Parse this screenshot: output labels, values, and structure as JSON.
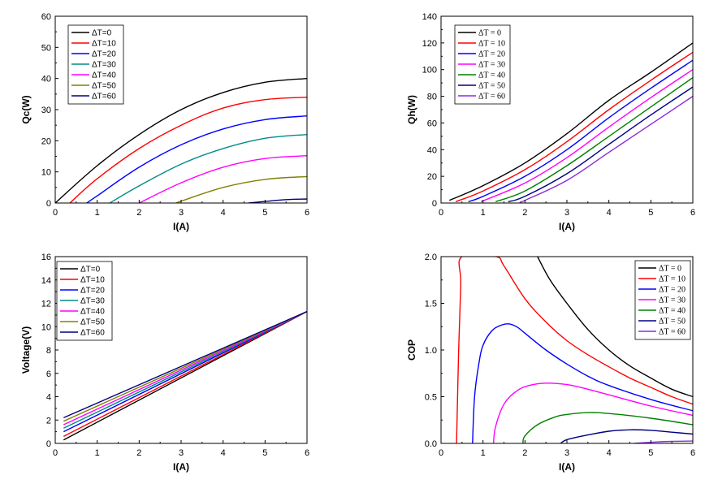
{
  "chart_data": [
    {
      "id": "qc",
      "type": "line",
      "xlabel": "I(A)",
      "ylabel": "Qc(W)",
      "xlim": [
        0,
        6
      ],
      "ylim": [
        0,
        60
      ],
      "xticks": [
        0,
        1,
        2,
        3,
        4,
        5,
        6
      ],
      "yticks": [
        0,
        10,
        20,
        30,
        40,
        50,
        60
      ],
      "legend_position": "top-left",
      "legend_font": "sans",
      "series": [
        {
          "name": "ΔT=0",
          "color": "#000000",
          "x": [
            0,
            1,
            2,
            3,
            4,
            5,
            6
          ],
          "y": [
            0,
            12.0,
            22.0,
            30.0,
            35.5,
            38.8,
            40.0
          ]
        },
        {
          "name": "ΔT=10",
          "color": "#ff0000",
          "x": [
            0.35,
            1,
            2,
            3,
            4,
            5,
            6
          ],
          "y": [
            0,
            7.8,
            17.5,
            25.0,
            30.5,
            33.2,
            34.0
          ]
        },
        {
          "name": "ΔT=20",
          "color": "#0000ff",
          "x": [
            0.75,
            1,
            2,
            3,
            4,
            5,
            6
          ],
          "y": [
            0,
            2.3,
            11.5,
            18.7,
            23.8,
            26.8,
            28.0
          ]
        },
        {
          "name": "ΔT=30",
          "color": "#008b8b",
          "x": [
            1.3,
            2,
            3,
            4,
            5,
            6
          ],
          "y": [
            0,
            5.5,
            12.5,
            17.5,
            20.8,
            22.0
          ]
        },
        {
          "name": "ΔT=40",
          "color": "#ff00ff",
          "x": [
            2.0,
            3,
            4,
            5,
            6
          ],
          "y": [
            0,
            6.5,
            11.5,
            14.3,
            15.2
          ]
        },
        {
          "name": "ΔT=50",
          "color": "#808000",
          "x": [
            2.9,
            3,
            4,
            5,
            6
          ],
          "y": [
            0,
            0.6,
            5.0,
            7.6,
            8.5
          ]
        },
        {
          "name": "ΔT=60",
          "color": "#000080",
          "x": [
            4.6,
            5,
            5.5,
            6
          ],
          "y": [
            0,
            0.5,
            1.1,
            1.3
          ]
        }
      ]
    },
    {
      "id": "qh",
      "type": "line",
      "xlabel": "I(A)",
      "ylabel": "Qh(W)",
      "xlim": [
        0,
        6
      ],
      "ylim": [
        0,
        140
      ],
      "xticks": [
        0,
        1,
        2,
        3,
        4,
        5,
        6
      ],
      "yticks": [
        0,
        20,
        40,
        60,
        80,
        100,
        120,
        140
      ],
      "legend_position": "top-left",
      "legend_font": "serif",
      "series": [
        {
          "name": "ΔT = 0",
          "color": "#000000",
          "x": [
            0.2,
            1,
            2,
            3,
            4,
            5,
            6
          ],
          "y": [
            2,
            13,
            30,
            52,
            77,
            98,
            120
          ]
        },
        {
          "name": "ΔT = 10",
          "color": "#ff0000",
          "x": [
            0.35,
            1,
            2,
            3,
            4,
            5,
            6
          ],
          "y": [
            1,
            9,
            25,
            46,
            70,
            92,
            113
          ]
        },
        {
          "name": "ΔT = 20",
          "color": "#0000ff",
          "x": [
            0.65,
            1,
            2,
            3,
            4,
            5,
            6
          ],
          "y": [
            1,
            5,
            20,
            40,
            64,
            86,
            107
          ]
        },
        {
          "name": "ΔT = 30",
          "color": "#ff00ff",
          "x": [
            0.95,
            2,
            3,
            4,
            5,
            6
          ],
          "y": [
            1,
            15,
            34,
            57,
            79,
            100
          ]
        },
        {
          "name": "ΔT = 40",
          "color": "#008000",
          "x": [
            1.3,
            2,
            3,
            4,
            5,
            6
          ],
          "y": [
            1,
            9,
            28,
            50,
            72,
            94
          ]
        },
        {
          "name": "ΔT = 50",
          "color": "#000080",
          "x": [
            1.6,
            2,
            3,
            4,
            5,
            6
          ],
          "y": [
            1,
            5,
            22,
            44,
            66,
            87
          ]
        },
        {
          "name": "ΔT = 60",
          "color": "#8a2be2",
          "x": [
            1.9,
            2,
            3,
            4,
            5,
            6
          ],
          "y": [
            1,
            2,
            17,
            38,
            59,
            80
          ]
        }
      ]
    },
    {
      "id": "voltage",
      "type": "line",
      "xlabel": "I(A)",
      "ylabel": "Voltage(V)",
      "xlim": [
        0,
        6
      ],
      "ylim": [
        0,
        16
      ],
      "xticks": [
        0,
        1,
        2,
        3,
        4,
        5,
        6
      ],
      "yticks": [
        0,
        2,
        4,
        6,
        8,
        10,
        12,
        14,
        16
      ],
      "legend_position": "top-left",
      "legend_font": "sans",
      "series": [
        {
          "name": "ΔT=0",
          "color": "#000000",
          "x": [
            0.2,
            6
          ],
          "y": [
            0.3,
            11.3
          ]
        },
        {
          "name": "ΔT=10",
          "color": "#ff0000",
          "x": [
            0.2,
            6
          ],
          "y": [
            0.6,
            11.3
          ]
        },
        {
          "name": "ΔT=20",
          "color": "#0000ff",
          "x": [
            0.2,
            6
          ],
          "y": [
            1.0,
            11.3
          ]
        },
        {
          "name": "ΔT=30",
          "color": "#008b8b",
          "x": [
            0.2,
            6
          ],
          "y": [
            1.3,
            11.3
          ]
        },
        {
          "name": "ΔT=40",
          "color": "#ff00ff",
          "x": [
            0.2,
            6
          ],
          "y": [
            1.6,
            11.3
          ]
        },
        {
          "name": "ΔT=50",
          "color": "#808000",
          "x": [
            0.2,
            6
          ],
          "y": [
            1.9,
            11.3
          ]
        },
        {
          "name": "ΔT=60",
          "color": "#000080",
          "x": [
            0.2,
            6
          ],
          "y": [
            2.2,
            11.3
          ]
        }
      ]
    },
    {
      "id": "cop",
      "type": "line",
      "xlabel": "I(A)",
      "ylabel": "COP",
      "xlim": [
        0,
        6
      ],
      "ylim": [
        0,
        2.0
      ],
      "xticks": [
        0,
        1,
        2,
        3,
        4,
        5,
        6
      ],
      "yticks": [
        0.0,
        0.5,
        1.0,
        1.5,
        2.0
      ],
      "tick_format": "fixed1",
      "legend_position": "top-right",
      "legend_font": "serif",
      "series": [
        {
          "name": "ΔT =  0",
          "color": "#000000",
          "x": [
            2.3,
            2.6,
            3,
            3.5,
            4,
            4.5,
            5,
            5.5,
            6
          ],
          "y": [
            2.0,
            1.75,
            1.5,
            1.22,
            1.0,
            0.83,
            0.7,
            0.58,
            0.5
          ]
        },
        {
          "name": "ΔT = 10",
          "color": "#ff0000",
          "x": [
            0.37,
            0.42,
            0.47,
            0.5,
            1.3,
            1.5,
            2,
            2.5,
            3,
            3.5,
            4,
            4.5,
            5,
            5.5,
            6
          ],
          "y": [
            0,
            1.0,
            1.7,
            2.0,
            2.0,
            1.9,
            1.55,
            1.3,
            1.1,
            0.95,
            0.82,
            0.7,
            0.6,
            0.5,
            0.42
          ]
        },
        {
          "name": "ΔT = 20",
          "color": "#0000ff",
          "x": [
            0.75,
            0.8,
            0.9,
            1,
            1.2,
            1.4,
            1.6,
            1.8,
            2,
            2.5,
            3,
            3.5,
            4,
            5,
            6
          ],
          "y": [
            0,
            0.5,
            0.85,
            1.05,
            1.2,
            1.26,
            1.28,
            1.25,
            1.18,
            1.0,
            0.85,
            0.72,
            0.62,
            0.47,
            0.35
          ]
        },
        {
          "name": "ΔT = 30",
          "color": "#ff00ff",
          "x": [
            1.25,
            1.3,
            1.5,
            1.8,
            2.1,
            2.5,
            3,
            3.5,
            4,
            5,
            6
          ],
          "y": [
            0,
            0.18,
            0.42,
            0.56,
            0.62,
            0.645,
            0.63,
            0.58,
            0.52,
            0.4,
            0.3
          ]
        },
        {
          "name": "ΔT = 40",
          "color": "#008000",
          "x": [
            1.95,
            2,
            2.3,
            2.7,
            3,
            3.5,
            4,
            5,
            6
          ],
          "y": [
            0,
            0.08,
            0.2,
            0.28,
            0.31,
            0.33,
            0.32,
            0.27,
            0.2
          ]
        },
        {
          "name": "ΔT = 50",
          "color": "#000080",
          "x": [
            2.85,
            3,
            3.5,
            4,
            4.5,
            5,
            5.5,
            6
          ],
          "y": [
            0,
            0.04,
            0.09,
            0.13,
            0.145,
            0.14,
            0.12,
            0.1
          ]
        },
        {
          "name": "ΔT = 60",
          "color": "#8a2be2",
          "x": [
            4.6,
            5,
            5.5,
            6
          ],
          "y": [
            0,
            0.012,
            0.022,
            0.025
          ]
        }
      ]
    }
  ]
}
